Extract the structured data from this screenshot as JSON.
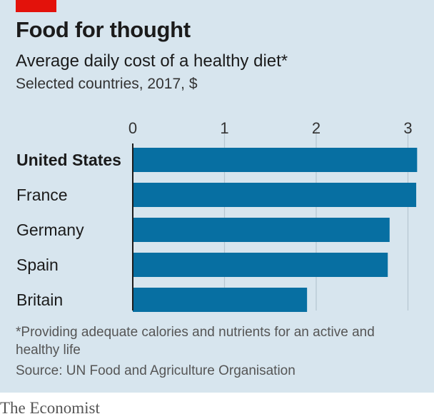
{
  "header": {
    "title": "Food for thought",
    "subtitle": "Average daily cost of a healthy diet*",
    "subsubtitle": "Selected countries, 2017, $"
  },
  "footer": {
    "footnote": "*Providing adequate calories and nutrients for an active and healthy life",
    "source": "Source: UN Food and Agriculture Organisation",
    "brand": "The Economist"
  },
  "colors": {
    "background": "#d7e5ee",
    "bar": "#076fa2",
    "accent": "#e3120b"
  },
  "chart_data": {
    "type": "bar",
    "orientation": "horizontal",
    "categories": [
      "United States",
      "France",
      "Germany",
      "Spain",
      "Britain"
    ],
    "highlighted_category": "United States",
    "values": [
      3.1,
      3.09,
      2.8,
      2.78,
      1.9
    ],
    "xlim": [
      0,
      3.1
    ],
    "xticks": [
      0,
      1,
      2,
      3
    ],
    "tick_position": "top",
    "grid": true
  }
}
